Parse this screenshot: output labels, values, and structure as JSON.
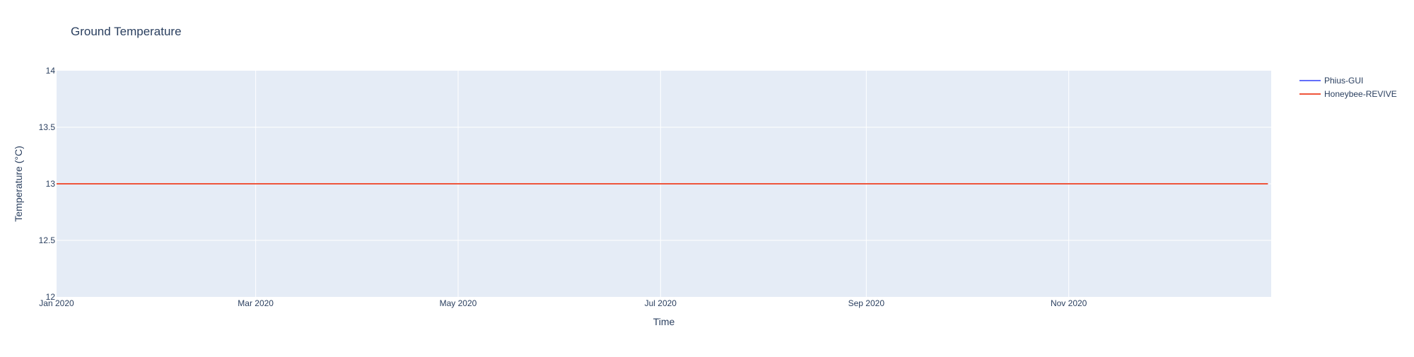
{
  "chart_data": {
    "type": "line",
    "title": "Ground Temperature",
    "xlabel": "Time",
    "ylabel": "Temperature (°C)",
    "x_type": "date",
    "xlim": [
      "2020-01-01",
      "2020-12-31"
    ],
    "x_ticks": [
      {
        "value": "2020-01-01",
        "label": "Jan 2020"
      },
      {
        "value": "2020-03-01",
        "label": "Mar 2020"
      },
      {
        "value": "2020-05-01",
        "label": "May 2020"
      },
      {
        "value": "2020-07-01",
        "label": "Jul 2020"
      },
      {
        "value": "2020-09-01",
        "label": "Sep 2020"
      },
      {
        "value": "2020-11-01",
        "label": "Nov 2020"
      }
    ],
    "ylim": [
      12,
      14
    ],
    "y_ticks": [
      {
        "value": 12,
        "label": "12"
      },
      {
        "value": 12.5,
        "label": "12.5"
      },
      {
        "value": 13,
        "label": "13"
      },
      {
        "value": 13.5,
        "label": "13.5"
      },
      {
        "value": 14,
        "label": "14"
      }
    ],
    "grid": true,
    "legend_position": "top-right outside plot",
    "plot_background": "#e5ecf6",
    "series": [
      {
        "name": "Phius-GUI",
        "color": "#636efa",
        "x": [
          "2020-01-01",
          "2020-12-31"
        ],
        "y": [
          13,
          13
        ]
      },
      {
        "name": "Honeybee-REVIVE",
        "color": "#ef553b",
        "x": [
          "2020-01-01",
          "2020-12-31"
        ],
        "y": [
          13,
          13
        ]
      }
    ]
  }
}
